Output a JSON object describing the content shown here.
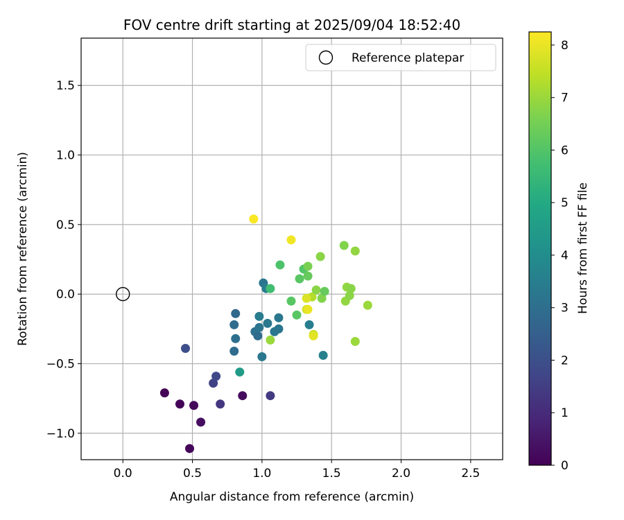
{
  "chart_data": {
    "type": "scatter",
    "title": "FOV centre drift starting at 2025/09/04 18:52:40",
    "xlabel": "Angular distance from reference (arcmin)",
    "ylabel": "Rotation from reference (arcmin)",
    "xlim": [
      -0.3,
      2.73
    ],
    "ylim": [
      -1.19,
      1.84
    ],
    "xticks": [
      0.0,
      0.5,
      1.0,
      1.5,
      2.0,
      2.5
    ],
    "xtick_labels": [
      "0.0",
      "0.5",
      "1.0",
      "1.5",
      "2.0",
      "2.5"
    ],
    "yticks": [
      -1.0,
      -0.5,
      0.0,
      0.5,
      1.0,
      1.5
    ],
    "ytick_labels": [
      "−1.0",
      "−0.5",
      "0.0",
      "0.5",
      "1.0",
      "1.5"
    ],
    "grid": true,
    "colormap": "viridis",
    "colorbar": {
      "label": "Hours from first FF file",
      "range": [
        0,
        8.25
      ],
      "ticks": [
        0,
        1,
        2,
        3,
        4,
        5,
        6,
        7,
        8
      ],
      "tick_labels": [
        "0",
        "1",
        "2",
        "3",
        "4",
        "5",
        "6",
        "7",
        "8"
      ]
    },
    "legend": {
      "placement": "top-right",
      "entries": [
        {
          "label": "Reference platepar",
          "marker": "open-circle"
        }
      ]
    },
    "reference_point": {
      "x": 0.0,
      "y": 0.0
    },
    "points": [
      {
        "x": 0.3,
        "y": -0.71,
        "hours": 0.05
      },
      {
        "x": 0.41,
        "y": -0.79,
        "hours": 0.1
      },
      {
        "x": 0.51,
        "y": -0.8,
        "hours": 0.2
      },
      {
        "x": 0.56,
        "y": -0.92,
        "hours": 0.3
      },
      {
        "x": 0.48,
        "y": -1.11,
        "hours": 0.15
      },
      {
        "x": 0.86,
        "y": -0.73,
        "hours": 0.25
      },
      {
        "x": 0.7,
        "y": -0.79,
        "hours": 1.3
      },
      {
        "x": 1.06,
        "y": -0.73,
        "hours": 1.4
      },
      {
        "x": 0.65,
        "y": -0.64,
        "hours": 1.6
      },
      {
        "x": 0.67,
        "y": -0.59,
        "hours": 1.8
      },
      {
        "x": 0.45,
        "y": -0.39,
        "hours": 2.0
      },
      {
        "x": 0.8,
        "y": -0.41,
        "hours": 2.9
      },
      {
        "x": 0.81,
        "y": -0.32,
        "hours": 3.0
      },
      {
        "x": 0.8,
        "y": -0.22,
        "hours": 2.9
      },
      {
        "x": 0.81,
        "y": -0.14,
        "hours": 2.8
      },
      {
        "x": 0.95,
        "y": -0.27,
        "hours": 3.1
      },
      {
        "x": 0.97,
        "y": -0.3,
        "hours": 2.9
      },
      {
        "x": 0.98,
        "y": -0.24,
        "hours": 3.2
      },
      {
        "x": 0.98,
        "y": -0.16,
        "hours": 3.4
      },
      {
        "x": 1.0,
        "y": -0.45,
        "hours": 3.3
      },
      {
        "x": 1.04,
        "y": -0.21,
        "hours": 3.3
      },
      {
        "x": 1.01,
        "y": 0.08,
        "hours": 3.2
      },
      {
        "x": 1.03,
        "y": 0.04,
        "hours": 3.5
      },
      {
        "x": 1.09,
        "y": -0.27,
        "hours": 3.3
      },
      {
        "x": 1.12,
        "y": -0.25,
        "hours": 3.2
      },
      {
        "x": 1.12,
        "y": -0.17,
        "hours": 3.3
      },
      {
        "x": 0.84,
        "y": -0.56,
        "hours": 4.5
      },
      {
        "x": 1.34,
        "y": -0.22,
        "hours": 3.5
      },
      {
        "x": 1.44,
        "y": -0.44,
        "hours": 3.6
      },
      {
        "x": 1.06,
        "y": 0.04,
        "hours": 5.7
      },
      {
        "x": 1.13,
        "y": 0.21,
        "hours": 5.9
      },
      {
        "x": 1.21,
        "y": -0.05,
        "hours": 6.1
      },
      {
        "x": 1.25,
        "y": -0.15,
        "hours": 6.1
      },
      {
        "x": 1.27,
        "y": 0.11,
        "hours": 6.1
      },
      {
        "x": 1.3,
        "y": 0.18,
        "hours": 6.0
      },
      {
        "x": 1.33,
        "y": 0.13,
        "hours": 6.3
      },
      {
        "x": 1.33,
        "y": 0.2,
        "hours": 6.6
      },
      {
        "x": 1.36,
        "y": -0.02,
        "hours": 7.3
      },
      {
        "x": 1.39,
        "y": 0.03,
        "hours": 6.8
      },
      {
        "x": 1.42,
        "y": 0.27,
        "hours": 6.8
      },
      {
        "x": 1.43,
        "y": -0.03,
        "hours": 6.7
      },
      {
        "x": 1.45,
        "y": 0.02,
        "hours": 6.3
      },
      {
        "x": 1.59,
        "y": 0.35,
        "hours": 6.7
      },
      {
        "x": 1.6,
        "y": -0.05,
        "hours": 6.9
      },
      {
        "x": 1.61,
        "y": 0.05,
        "hours": 6.9
      },
      {
        "x": 1.63,
        "y": -0.01,
        "hours": 6.8
      },
      {
        "x": 1.64,
        "y": 0.04,
        "hours": 6.8
      },
      {
        "x": 1.67,
        "y": 0.31,
        "hours": 6.9
      },
      {
        "x": 1.67,
        "y": -0.34,
        "hours": 7.0
      },
      {
        "x": 1.76,
        "y": -0.08,
        "hours": 7.0
      },
      {
        "x": 1.06,
        "y": -0.33,
        "hours": 7.0
      },
      {
        "x": 1.32,
        "y": -0.11,
        "hours": 7.6
      },
      {
        "x": 1.32,
        "y": -0.03,
        "hours": 7.8
      },
      {
        "x": 1.37,
        "y": -0.29,
        "hours": 7.5
      },
      {
        "x": 1.37,
        "y": -0.3,
        "hours": 7.9
      },
      {
        "x": 1.33,
        "y": -0.11,
        "hours": 8.0
      },
      {
        "x": 1.21,
        "y": 0.39,
        "hours": 8.1
      },
      {
        "x": 0.94,
        "y": 0.54,
        "hours": 8.2
      }
    ]
  }
}
